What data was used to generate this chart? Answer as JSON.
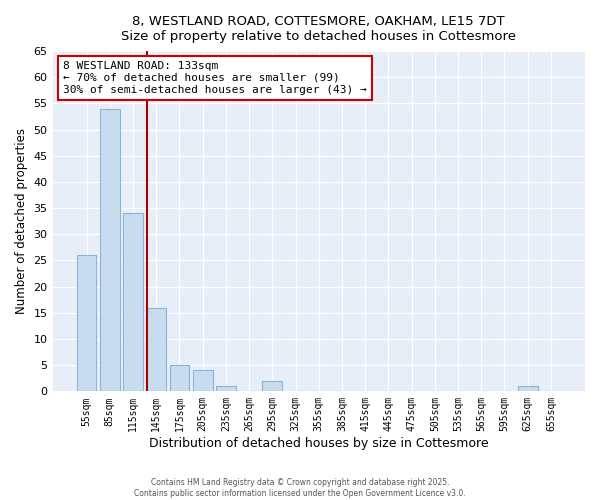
{
  "title1": "8, WESTLAND ROAD, COTTESMORE, OAKHAM, LE15 7DT",
  "title2": "Size of property relative to detached houses in Cottesmore",
  "xlabel": "Distribution of detached houses by size in Cottesmore",
  "ylabel": "Number of detached properties",
  "bar_labels": [
    "55sqm",
    "85sqm",
    "115sqm",
    "145sqm",
    "175sqm",
    "205sqm",
    "235sqm",
    "265sqm",
    "295sqm",
    "325sqm",
    "355sqm",
    "385sqm",
    "415sqm",
    "445sqm",
    "475sqm",
    "505sqm",
    "535sqm",
    "565sqm",
    "595sqm",
    "625sqm",
    "655sqm"
  ],
  "bar_values": [
    26,
    54,
    34,
    16,
    5,
    4,
    1,
    0,
    2,
    0,
    0,
    0,
    0,
    0,
    0,
    0,
    0,
    0,
    0,
    1,
    0
  ],
  "bar_color": "#c8dcf0",
  "bar_edge_color": "#8ab4d8",
  "vline_x": 2.6,
  "vline_color": "#aa0000",
  "annotation_text": "8 WESTLAND ROAD: 133sqm\n← 70% of detached houses are smaller (99)\n30% of semi-detached houses are larger (43) →",
  "annotation_box_color": "white",
  "annotation_box_edge": "#cc0000",
  "ylim": [
    0,
    65
  ],
  "yticks": [
    0,
    5,
    10,
    15,
    20,
    25,
    30,
    35,
    40,
    45,
    50,
    55,
    60,
    65
  ],
  "footer1": "Contains HM Land Registry data © Crown copyright and database right 2025.",
  "footer2": "Contains public sector information licensed under the Open Government Licence v3.0.",
  "bg_color": "#ffffff",
  "plot_bg_color": "#e8eef8",
  "grid_color": "#ffffff",
  "title1_fontsize": 10,
  "title2_fontsize": 9
}
